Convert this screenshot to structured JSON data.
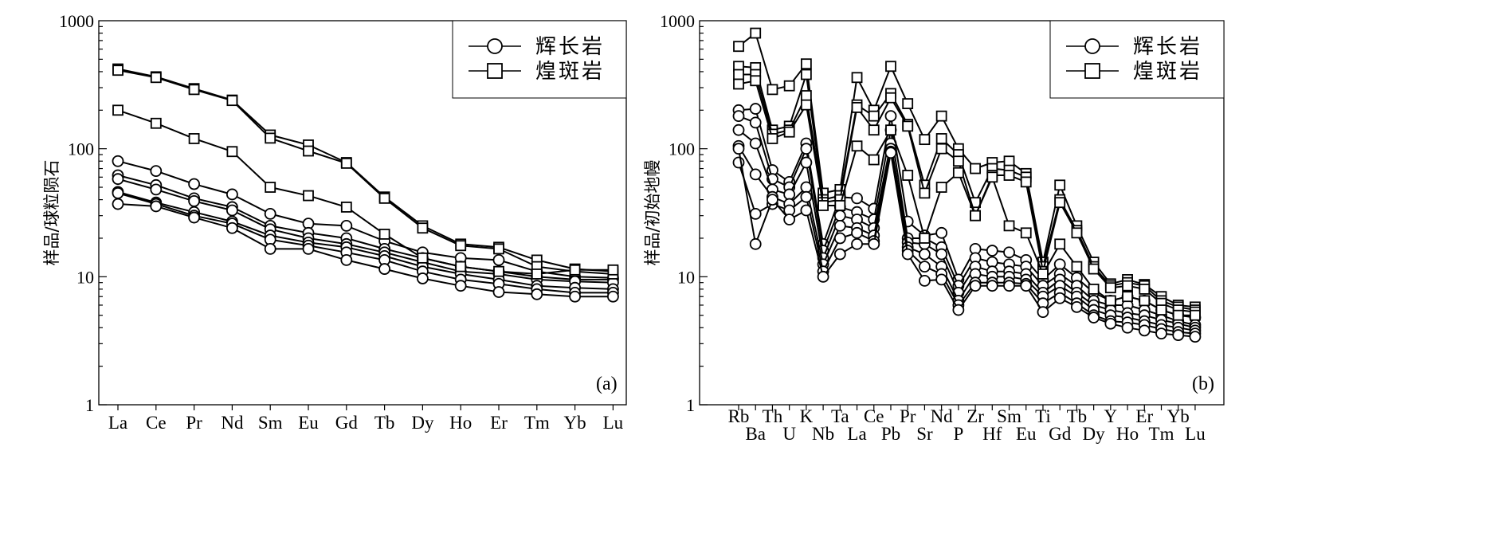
{
  "chart_data": [
    {
      "type": "line",
      "panel_label": "(a)",
      "ylabel": "样品/球粒陨石",
      "y_scale": "log",
      "ylim": [
        1,
        1000
      ],
      "yticks": [
        "1",
        "10",
        "100",
        "1000"
      ],
      "categories": [
        "La",
        "Ce",
        "Pr",
        "Nd",
        "Sm",
        "Eu",
        "Gd",
        "Tb",
        "Dy",
        "Ho",
        "Er",
        "Tm",
        "Yb",
        "Lu"
      ],
      "legend": {
        "position": "top-right",
        "entries": [
          {
            "label": "辉长岩",
            "marker": "circle"
          },
          {
            "label": "煌斑岩",
            "marker": "square"
          }
        ]
      },
      "series": [
        {
          "marker": "circle",
          "values": [
            80,
            67,
            53,
            44,
            31,
            26,
            25,
            19,
            15.5,
            14,
            13.5,
            11,
            10,
            9.8
          ]
        },
        {
          "marker": "circle",
          "values": [
            62,
            52,
            41,
            35,
            25,
            22,
            20,
            16.5,
            14,
            12,
            11,
            10,
            9.5,
            9.5
          ]
        },
        {
          "marker": "circle",
          "values": [
            58,
            48,
            39,
            33,
            23.5,
            20,
            18,
            15.5,
            13,
            11,
            10.5,
            9.5,
            9.2,
            9
          ]
        },
        {
          "marker": "circle",
          "values": [
            46,
            38,
            32,
            27,
            21,
            18.5,
            17,
            14.5,
            12,
            10.5,
            9.5,
            8.5,
            8.2,
            8
          ]
        },
        {
          "marker": "circle",
          "values": [
            45,
            37,
            30,
            26,
            19.5,
            17.5,
            15.5,
            13.5,
            11,
            9.5,
            8.8,
            8,
            7.5,
            7.5
          ]
        },
        {
          "marker": "circle",
          "values": [
            37,
            35.5,
            29,
            24,
            16.5,
            16.5,
            13.5,
            11.5,
            9.7,
            8.5,
            7.6,
            7.3,
            7,
            7
          ]
        },
        {
          "marker": "square",
          "values": [
            420,
            365,
            295,
            240,
            128,
            107,
            78,
            42,
            25,
            18,
            17,
            13.5,
            11.5,
            11
          ]
        },
        {
          "marker": "square",
          "values": [
            410,
            360,
            290,
            238,
            121,
            96,
            77,
            41,
            24,
            17.5,
            16.5,
            12,
            11,
            10.5
          ]
        },
        {
          "marker": "square",
          "values": [
            200,
            158,
            120,
            95,
            50,
            43,
            35,
            21.5,
            14,
            12,
            11,
            10.5,
            11.3,
            11.3
          ]
        }
      ]
    },
    {
      "type": "line",
      "panel_label": "(b)",
      "ylabel": "样品/初始地幔",
      "y_scale": "log",
      "ylim": [
        1,
        1000
      ],
      "yticks": [
        "1",
        "10",
        "100",
        "1000"
      ],
      "categories": [
        "Rb",
        "Ba",
        "Th",
        "U",
        "K",
        "Nb",
        "Ta",
        "La",
        "Ce",
        "Pb",
        "Pr",
        "Sr",
        "Nd",
        "P",
        "Zr",
        "Hf",
        "Sm",
        "Eu",
        "Ti",
        "Gd",
        "Tb",
        "Dy",
        "Y",
        "Ho",
        "Er",
        "Tm",
        "Yb",
        "Lu"
      ],
      "legend": {
        "position": "top-right",
        "entries": [
          {
            "label": "辉长岩",
            "marker": "circle"
          },
          {
            "label": "煌斑岩",
            "marker": "square"
          }
        ]
      },
      "series": [
        {
          "marker": "circle",
          "values": [
            200,
            205,
            68,
            55,
            110,
            18,
            42,
            41,
            34,
            180,
            27,
            21,
            22,
            9.5,
            16.5,
            16,
            15.5,
            13.5,
            9.5,
            12.5,
            9.8,
            7.5,
            6.5,
            7,
            6.5,
            5.5,
            5,
            4.8
          ]
        },
        {
          "marker": "circle",
          "values": [
            180,
            160,
            58,
            50,
            100,
            16,
            35,
            32,
            28,
            140,
            20,
            20,
            17,
            8.5,
            14,
            13,
            12.5,
            12,
            8.5,
            10.5,
            8.5,
            6.5,
            6,
            6,
            5.5,
            5,
            4.5,
            4.2
          ]
        },
        {
          "marker": "circle",
          "values": [
            140,
            110,
            48,
            44,
            78,
            14,
            30,
            28,
            24,
            110,
            18.5,
            18,
            15,
            7.5,
            12,
            11,
            11,
            10.5,
            7.5,
            9.5,
            7.5,
            6,
            5.5,
            5.2,
            5,
            4.6,
            4.3,
            4
          ]
        },
        {
          "marker": "circle",
          "values": [
            105,
            63,
            42,
            37,
            50,
            12.5,
            25,
            24,
            21,
            100,
            17,
            15,
            12,
            6.5,
            10.5,
            10,
            10,
            9.5,
            7,
            8.5,
            7,
            5.5,
            5,
            4.8,
            4.5,
            4.2,
            4,
            3.8
          ]
        },
        {
          "marker": "circle",
          "values": [
            78,
            31,
            37,
            33,
            42,
            11,
            20,
            22,
            19,
            95,
            16,
            12,
            10.5,
            6,
            9,
            9,
            9,
            8.8,
            6.2,
            7.5,
            6.2,
            5,
            4.5,
            4.4,
            4.2,
            3.9,
            3.7,
            3.6
          ]
        },
        {
          "marker": "circle",
          "values": [
            100,
            18,
            40,
            28,
            33,
            10,
            15,
            18,
            18,
            93,
            15,
            9.3,
            9.5,
            5.5,
            8.5,
            8.5,
            8.5,
            8.5,
            5.3,
            6.8,
            5.8,
            4.8,
            4.3,
            4,
            3.8,
            3.6,
            3.5,
            3.4
          ]
        },
        {
          "marker": "square",
          "values": [
            630,
            800,
            290,
            310,
            460,
            45,
            48,
            360,
            200,
            440,
            225,
            118,
            180,
            100,
            70,
            78,
            80,
            64,
            13,
            52,
            25,
            13,
            8.8,
            9.5,
            8.7,
            7,
            6,
            5.8
          ]
        },
        {
          "marker": "square",
          "values": [
            440,
            430,
            140,
            150,
            380,
            40,
            43,
            220,
            180,
            270,
            155,
            52,
            120,
            90,
            38,
            70,
            68,
            60,
            12,
            40,
            23,
            12,
            8.5,
            9,
            8.5,
            6.5,
            5.8,
            5.5
          ]
        },
        {
          "marker": "square",
          "values": [
            380,
            380,
            130,
            140,
            260,
            38,
            40,
            210,
            140,
            250,
            150,
            45,
            100,
            80,
            30,
            62,
            62,
            55,
            11,
            38,
            22,
            11.5,
            8.2,
            8.5,
            8,
            6.2,
            5.5,
            5.3
          ]
        },
        {
          "marker": "square",
          "values": [
            320,
            340,
            120,
            135,
            220,
            36,
            36,
            105,
            82,
            140,
            62,
            20,
            50,
            65,
            30,
            60,
            25,
            22,
            10.5,
            18,
            12,
            8,
            6.5,
            7,
            6.5,
            5.5,
            5,
            5
          ]
        }
      ]
    }
  ]
}
